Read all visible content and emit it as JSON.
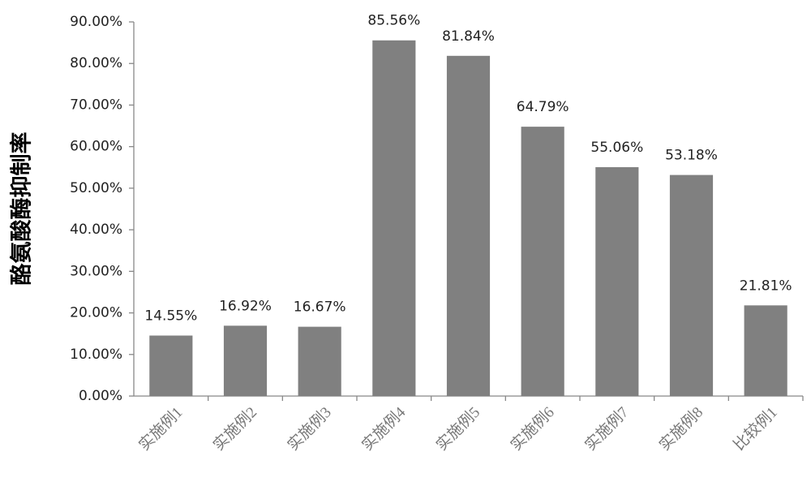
{
  "chart_data": {
    "type": "bar",
    "y_label": "酪氨酸酶抑制率",
    "categories": [
      "实施例1",
      "实施例2",
      "实施例3",
      "实施例4",
      "实施例5",
      "实施例6",
      "实施例7",
      "实施例8",
      "比较例1"
    ],
    "values": [
      14.55,
      16.92,
      16.67,
      85.56,
      81.84,
      64.79,
      55.06,
      53.18,
      21.81
    ],
    "value_labels": [
      "14.55%",
      "16.92%",
      "16.67%",
      "85.56%",
      "81.84%",
      "64.79%",
      "55.06%",
      "53.18%",
      "21.81%"
    ],
    "color": "#808080",
    "ylim": [
      0,
      90
    ],
    "yticks": [
      {
        "value": 0,
        "label": "0.00%"
      },
      {
        "value": 10,
        "label": "10.00%"
      },
      {
        "value": 20,
        "label": "20.00%"
      },
      {
        "value": 30,
        "label": "30.00%"
      },
      {
        "value": 40,
        "label": "40.00%"
      },
      {
        "value": 50,
        "label": "50.00%"
      },
      {
        "value": 60,
        "label": "60.00%"
      },
      {
        "value": 70,
        "label": "70.00%"
      },
      {
        "value": 80,
        "label": "80.00%"
      },
      {
        "value": 90,
        "label": "90.00%"
      }
    ],
    "grid": false
  }
}
